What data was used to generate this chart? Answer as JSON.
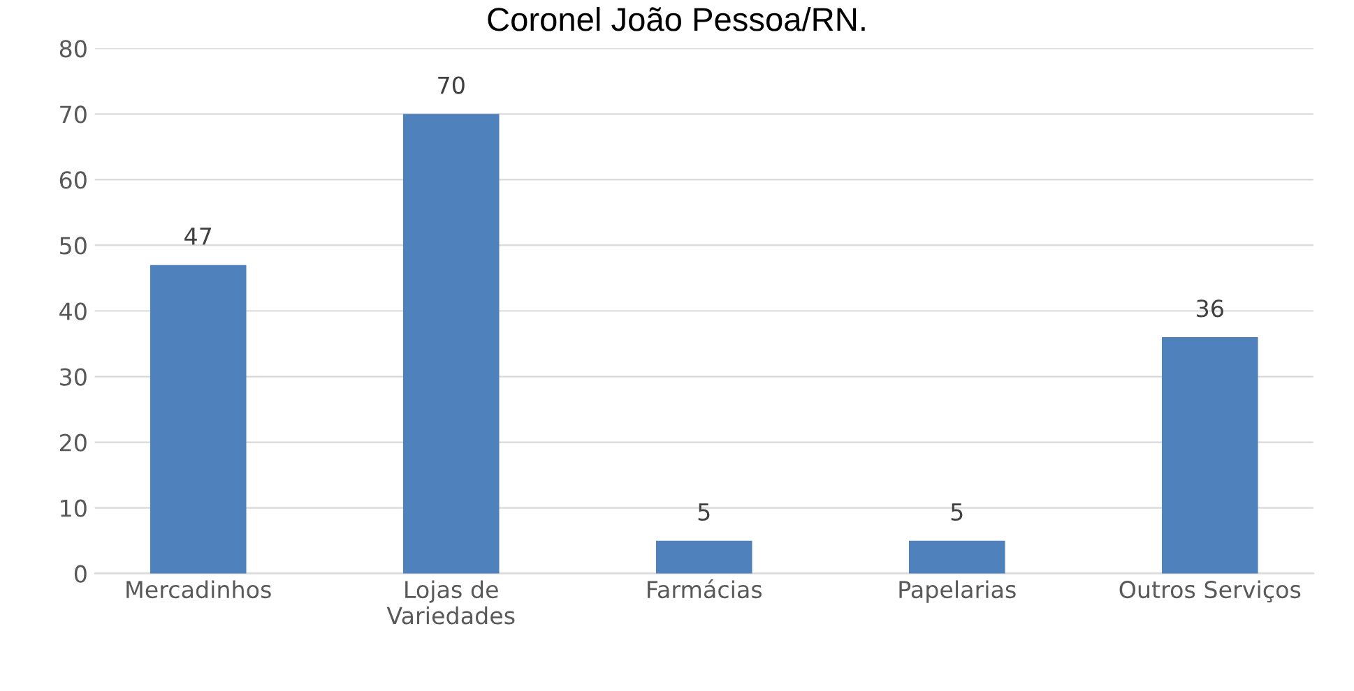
{
  "chart_data": {
    "type": "bar",
    "title": "Coronel João Pessoa/RN.",
    "categories": [
      "Mercadinhos",
      "Lojas de\nVariedades",
      "Farmácias",
      "Papelarias",
      "Outros Serviços"
    ],
    "values": [
      47,
      70,
      5,
      5,
      36
    ],
    "color": "#4f81bd",
    "ylim": [
      0,
      80
    ],
    "yticks": [
      0,
      10,
      20,
      30,
      40,
      50,
      60,
      70,
      80
    ],
    "grid": "y",
    "data_labels": true
  }
}
